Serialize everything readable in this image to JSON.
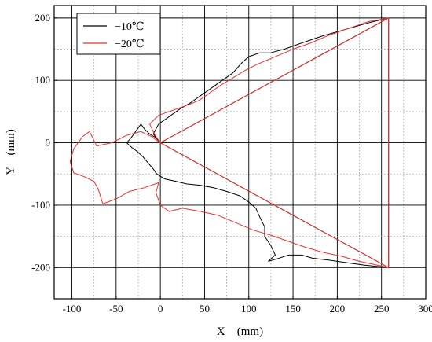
{
  "chart_data": {
    "type": "line",
    "xlabel": "X　(mm)",
    "ylabel": "Y　(mm)",
    "xlim": [
      -120,
      300
    ],
    "ylim": [
      -250,
      220
    ],
    "x_ticks": [
      -100,
      -50,
      0,
      50,
      100,
      150,
      200,
      250,
      300
    ],
    "y_ticks": [
      -200,
      -100,
      0,
      100,
      200
    ],
    "grid": "major solid, minor dotted",
    "legend_position": "top-left",
    "series": [
      {
        "name": "−10℃",
        "color": "#000000",
        "points": [
          [
            0,
            0
          ],
          [
            258,
            200
          ],
          [
            258,
            -200
          ],
          [
            0,
            0
          ],
          [
            -5,
            8
          ],
          [
            -12,
            14
          ],
          [
            -18,
            22
          ],
          [
            -22,
            30
          ],
          [
            -28,
            18
          ],
          [
            -33,
            8
          ],
          [
            -38,
            0
          ],
          [
            -32,
            -8
          ],
          [
            -26,
            -14
          ],
          [
            -20,
            -22
          ],
          [
            -14,
            -32
          ],
          [
            -8,
            -42
          ],
          [
            -4,
            -50
          ],
          [
            5,
            -58
          ],
          [
            18,
            -62
          ],
          [
            30,
            -66
          ],
          [
            45,
            -68
          ],
          [
            60,
            -72
          ],
          [
            75,
            -78
          ],
          [
            90,
            -85
          ],
          [
            100,
            -95
          ],
          [
            108,
            -105
          ],
          [
            112,
            -118
          ],
          [
            118,
            -135
          ],
          [
            118,
            -150
          ],
          [
            125,
            -165
          ],
          [
            130,
            -180
          ],
          [
            122,
            -190
          ],
          [
            132,
            -186
          ],
          [
            145,
            -180
          ],
          [
            160,
            -180
          ],
          [
            172,
            -185
          ],
          [
            190,
            -188
          ],
          [
            210,
            -192
          ],
          [
            230,
            -196
          ],
          [
            258,
            -200
          ]
        ],
        "upper_branch": [
          [
            0,
            0
          ],
          [
            -8,
            14
          ],
          [
            -2,
            30
          ],
          [
            10,
            42
          ],
          [
            22,
            54
          ],
          [
            34,
            64
          ],
          [
            46,
            76
          ],
          [
            58,
            88
          ],
          [
            70,
            100
          ],
          [
            82,
            112
          ],
          [
            92,
            128
          ],
          [
            100,
            138
          ],
          [
            112,
            144
          ],
          [
            124,
            144
          ],
          [
            140,
            150
          ],
          [
            160,
            160
          ],
          [
            185,
            172
          ],
          [
            210,
            182
          ],
          [
            235,
            192
          ],
          [
            258,
            200
          ]
        ]
      },
      {
        "name": "−20℃",
        "color": "#e8312f",
        "points": [
          [
            0,
            0
          ],
          [
            258,
            200
          ],
          [
            258,
            -200
          ],
          [
            0,
            0
          ],
          [
            -10,
            10
          ],
          [
            -22,
            18
          ],
          [
            -38,
            12
          ],
          [
            -55,
            0
          ],
          [
            -72,
            -5
          ],
          [
            -80,
            18
          ],
          [
            -88,
            10
          ],
          [
            -98,
            -10
          ],
          [
            -102,
            -30
          ],
          [
            -98,
            -48
          ],
          [
            -85,
            -55
          ],
          [
            -75,
            -62
          ],
          [
            -70,
            -75
          ],
          [
            -65,
            -98
          ],
          [
            -50,
            -90
          ],
          [
            -35,
            -78
          ],
          [
            -18,
            -72
          ],
          [
            -2,
            -64
          ],
          [
            -5,
            -80
          ],
          [
            0,
            -100
          ],
          [
            10,
            -110
          ],
          [
            25,
            -105
          ],
          [
            45,
            -110
          ],
          [
            65,
            -116
          ],
          [
            85,
            -128
          ],
          [
            105,
            -140
          ],
          [
            125,
            -148
          ],
          [
            145,
            -158
          ],
          [
            165,
            -168
          ],
          [
            185,
            -176
          ],
          [
            205,
            -182
          ],
          [
            225,
            -190
          ],
          [
            245,
            -196
          ],
          [
            258,
            -200
          ]
        ],
        "upper_branch": [
          [
            0,
            0
          ],
          [
            -6,
            12
          ],
          [
            -12,
            30
          ],
          [
            -2,
            44
          ],
          [
            14,
            52
          ],
          [
            30,
            60
          ],
          [
            44,
            68
          ],
          [
            56,
            80
          ],
          [
            68,
            92
          ],
          [
            82,
            104
          ],
          [
            96,
            116
          ],
          [
            110,
            126
          ],
          [
            130,
            138
          ],
          [
            150,
            150
          ],
          [
            170,
            160
          ],
          [
            190,
            172
          ],
          [
            210,
            182
          ],
          [
            235,
            194
          ],
          [
            258,
            200
          ]
        ]
      }
    ]
  }
}
